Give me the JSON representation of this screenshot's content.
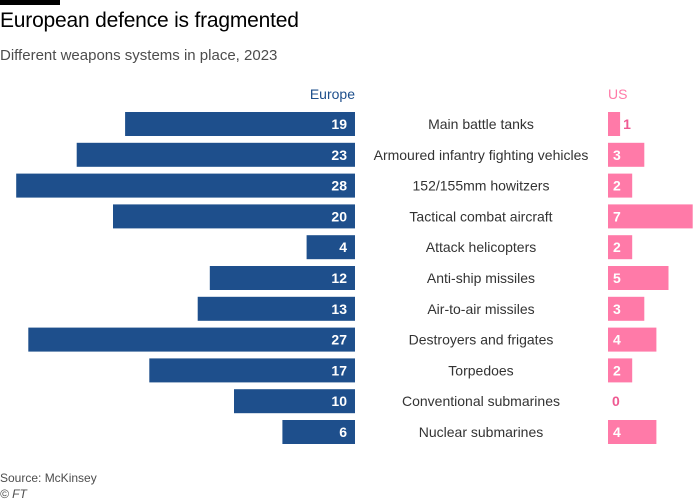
{
  "header": {
    "title": "European defence is fragmented",
    "subtitle": "Different weapons systems in place, 2023"
  },
  "footer": {
    "source": "Source: McKinsey",
    "credit": "© FT"
  },
  "colors": {
    "europe": "#1e4f8c",
    "us": "#ff7aa8",
    "us_zero_label": "#ef5a92",
    "category_text": "#333333"
  },
  "chart_data": {
    "type": "bar",
    "categories": [
      "Main battle tanks",
      "Armoured infantry fighting vehicles",
      "152/155mm howitzers",
      "Tactical combat aircraft",
      "Attack helicopters",
      "Anti-ship missiles",
      "Air-to-air missiles",
      "Destroyers and frigates",
      "Torpedoes",
      "Conventional submarines",
      "Nuclear submarines"
    ],
    "series": [
      {
        "name": "Europe",
        "values": [
          19,
          23,
          28,
          20,
          4,
          12,
          13,
          27,
          17,
          10,
          6
        ]
      },
      {
        "name": "US",
        "values": [
          1,
          3,
          2,
          7,
          2,
          5,
          3,
          4,
          2,
          0,
          4
        ]
      }
    ]
  }
}
